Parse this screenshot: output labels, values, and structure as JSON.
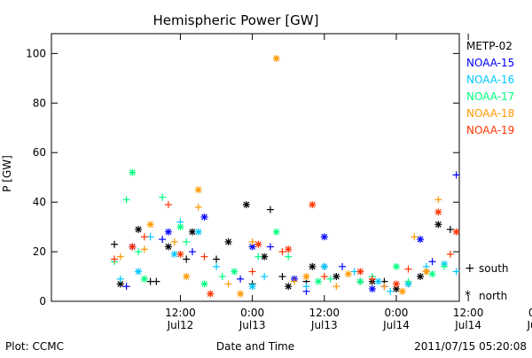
{
  "chart_data": {
    "type": "scatter",
    "title": "Hemispheric Power [GW]",
    "ylabel": "P [GW]",
    "xlabel": "Date and Time",
    "footer_left": "Plot: CCMC",
    "footer_right": "2011/07/15 05:20:08",
    "x_unit": "hours since 2011/07/12 00:00 UT",
    "xlim": [
      -9.5,
      58.5
    ],
    "ylim": [
      0,
      108
    ],
    "y_ticks": [
      0,
      20,
      40,
      60,
      80,
      100
    ],
    "x_ticks": [
      {
        "x": 12,
        "line1": "12:00",
        "line2": "Jul12"
      },
      {
        "x": 24,
        "line1": "0:00",
        "line2": "Jul13"
      },
      {
        "x": 36,
        "line1": "12:00",
        "line2": "Jul13"
      },
      {
        "x": 48,
        "line1": "0:00",
        "line2": "Jul14"
      },
      {
        "x": 60,
        "line1": "12:00",
        "line2": "Jul14"
      },
      {
        "x": 72,
        "line1": "0:00",
        "line2": "Jul15"
      }
    ],
    "marker_legend": [
      {
        "symbol": "+",
        "label": "south"
      },
      {
        "symbol": "*",
        "label": "north"
      }
    ],
    "series": [
      {
        "name": "METP-02",
        "color": "#000000",
        "south": [
          [
            1,
            23
          ],
          [
            7,
            8
          ],
          [
            8,
            8
          ],
          [
            13,
            17
          ],
          [
            18,
            17
          ],
          [
            24,
            7
          ],
          [
            27,
            37
          ],
          [
            29,
            10
          ],
          [
            33,
            8
          ],
          [
            36,
            14
          ],
          [
            42,
            8
          ],
          [
            46,
            8
          ],
          [
            50,
            7
          ],
          [
            53,
            12
          ],
          [
            57,
            29
          ],
          [
            60,
            30
          ],
          [
            64,
            18
          ],
          [
            67,
            22
          ],
          [
            70,
            14
          ],
          [
            73,
            17
          ]
        ],
        "north": [
          [
            2,
            7
          ],
          [
            5,
            29
          ],
          [
            10,
            22
          ],
          [
            14,
            28
          ],
          [
            20,
            24
          ],
          [
            23,
            39
          ],
          [
            26,
            18
          ],
          [
            30,
            6
          ],
          [
            34,
            14
          ],
          [
            38,
            10
          ],
          [
            44,
            8
          ],
          [
            48,
            5
          ],
          [
            52,
            10
          ],
          [
            55,
            31
          ],
          [
            59,
            31
          ],
          [
            62,
            39
          ],
          [
            65,
            20
          ],
          [
            68,
            25
          ],
          [
            72,
            14
          ],
          [
            74,
            15
          ]
        ]
      },
      {
        "name": "NOAA-15",
        "color": "#0000ff",
        "south": [
          [
            3,
            6
          ],
          [
            9,
            25
          ],
          [
            14,
            20
          ],
          [
            22,
            9
          ],
          [
            27,
            22
          ],
          [
            33,
            4
          ],
          [
            39,
            14
          ],
          [
            46,
            6
          ],
          [
            54,
            16
          ],
          [
            58,
            51
          ],
          [
            63,
            20
          ],
          [
            67,
            18
          ],
          [
            71,
            30
          ]
        ],
        "north": [
          [
            4,
            22
          ],
          [
            10,
            28
          ],
          [
            16,
            34
          ],
          [
            24,
            22
          ],
          [
            31,
            9
          ],
          [
            36,
            26
          ],
          [
            44,
            5
          ],
          [
            52,
            25
          ],
          [
            60,
            34
          ],
          [
            62,
            54
          ],
          [
            66,
            33
          ],
          [
            70,
            15
          ],
          [
            75,
            73
          ]
        ]
      },
      {
        "name": "NOAA-16",
        "color": "#00c8ff",
        "south": [
          [
            2,
            9
          ],
          [
            7,
            26
          ],
          [
            12,
            32
          ],
          [
            18,
            14
          ],
          [
            26,
            10
          ],
          [
            33,
            6
          ],
          [
            41,
            12
          ],
          [
            47,
            4
          ],
          [
            53,
            14
          ],
          [
            58,
            12
          ],
          [
            63,
            18
          ],
          [
            68,
            10
          ],
          [
            73,
            11
          ]
        ],
        "north": [
          [
            5,
            12
          ],
          [
            11,
            19
          ],
          [
            15,
            28
          ],
          [
            24,
            6
          ],
          [
            36,
            14
          ],
          [
            45,
            8
          ],
          [
            50,
            7
          ],
          [
            56,
            15
          ],
          [
            64,
            22
          ]
        ]
      },
      {
        "name": "NOAA-17",
        "color": "#00ff80",
        "south": [
          [
            1,
            16
          ],
          [
            3,
            41
          ],
          [
            5,
            20
          ],
          [
            9,
            42
          ],
          [
            13,
            24
          ],
          [
            19,
            10
          ],
          [
            25,
            18
          ],
          [
            30,
            18
          ],
          [
            37,
            9
          ],
          [
            44,
            10
          ],
          [
            50,
            8
          ],
          [
            56,
            14
          ],
          [
            61,
            20
          ],
          [
            67,
            18
          ],
          [
            73,
            10
          ]
        ],
        "north": [
          [
            4,
            52
          ],
          [
            6,
            9
          ],
          [
            12,
            30
          ],
          [
            16,
            7
          ],
          [
            21,
            12
          ],
          [
            28,
            28
          ],
          [
            35,
            8
          ],
          [
            42,
            8
          ],
          [
            48,
            14
          ],
          [
            54,
            11
          ],
          [
            60,
            10
          ],
          [
            66,
            23
          ],
          [
            71,
            15
          ]
        ]
      },
      {
        "name": "NOAA-18",
        "color": "#ff9900",
        "south": [
          [
            2,
            18
          ],
          [
            6,
            21
          ],
          [
            11,
            24
          ],
          [
            15,
            38
          ],
          [
            20,
            7
          ],
          [
            24,
            24
          ],
          [
            31,
            8
          ],
          [
            38,
            6
          ],
          [
            46,
            6
          ],
          [
            51,
            26
          ],
          [
            55,
            41
          ],
          [
            60,
            20
          ],
          [
            64,
            38
          ],
          [
            69,
            16
          ],
          [
            74,
            12
          ]
        ],
        "north": [
          [
            7,
            31
          ],
          [
            13,
            10
          ],
          [
            15,
            45
          ],
          [
            22,
            3
          ],
          [
            28,
            98
          ],
          [
            33,
            10
          ],
          [
            40,
            11
          ],
          [
            49,
            4
          ],
          [
            53,
            12
          ],
          [
            59,
            10
          ],
          [
            63,
            35
          ],
          [
            70,
            11
          ],
          [
            73,
            5
          ]
        ]
      },
      {
        "name": "NOAA-19",
        "color": "#ff3300",
        "south": [
          [
            1,
            17
          ],
          [
            6,
            26
          ],
          [
            10,
            39
          ],
          [
            16,
            18
          ],
          [
            24,
            12
          ],
          [
            29,
            20
          ],
          [
            36,
            10
          ],
          [
            44,
            9
          ],
          [
            50,
            13
          ],
          [
            57,
            19
          ],
          [
            62,
            14
          ],
          [
            68,
            27
          ],
          [
            72,
            12
          ]
        ],
        "north": [
          [
            4,
            22
          ],
          [
            12,
            19
          ],
          [
            17,
            3
          ],
          [
            25,
            23
          ],
          [
            30,
            21
          ],
          [
            34,
            39
          ],
          [
            42,
            12
          ],
          [
            48,
            7
          ],
          [
            55,
            36
          ],
          [
            58,
            28
          ],
          [
            60,
            75
          ],
          [
            66,
            44
          ],
          [
            70,
            10
          ],
          [
            73,
            6
          ]
        ]
      }
    ]
  }
}
